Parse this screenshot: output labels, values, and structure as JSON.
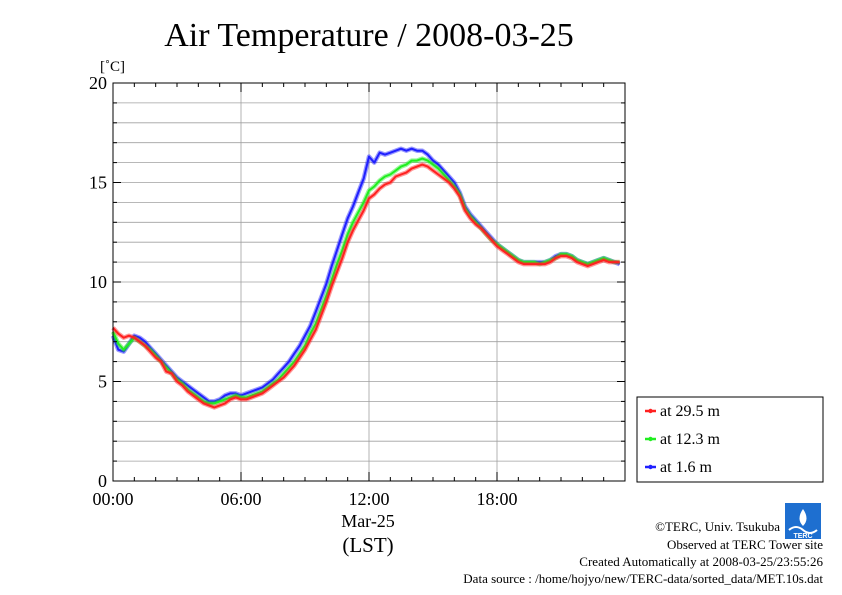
{
  "chart_data": {
    "type": "line",
    "title": "Air Temperature / 2008-03-25",
    "ylabel": "[˚C]",
    "xlabel": "(LST)",
    "date_label": "Mar-25",
    "ylim": [
      0,
      20
    ],
    "xlim": [
      0,
      24
    ],
    "x_unit": "hour",
    "y_ticks": [
      0,
      5,
      10,
      15,
      20
    ],
    "x_ticks": [
      {
        "value": 0,
        "label": "00:00"
      },
      {
        "value": 6,
        "label": "06:00"
      },
      {
        "value": 12,
        "label": "12:00"
      },
      {
        "value": 18,
        "label": "18:00"
      }
    ],
    "grid": true,
    "legend_position": "right-bottom",
    "series": [
      {
        "name": "at 29.5 m",
        "color": "#ff2020",
        "x": [
          0.0,
          0.25,
          0.5,
          0.75,
          1.0,
          1.25,
          1.5,
          1.75,
          2.0,
          2.25,
          2.5,
          2.75,
          3.0,
          3.25,
          3.5,
          3.75,
          4.0,
          4.25,
          4.5,
          4.75,
          5.0,
          5.25,
          5.5,
          5.75,
          6.0,
          6.25,
          6.5,
          6.75,
          7.0,
          7.25,
          7.5,
          7.75,
          8.0,
          8.25,
          8.5,
          8.75,
          9.0,
          9.25,
          9.5,
          9.75,
          10.0,
          10.25,
          10.5,
          10.75,
          11.0,
          11.25,
          11.5,
          11.75,
          12.0,
          12.25,
          12.5,
          12.75,
          13.0,
          13.25,
          13.5,
          13.75,
          14.0,
          14.25,
          14.5,
          14.75,
          15.0,
          15.25,
          15.5,
          15.75,
          16.0,
          16.25,
          16.5,
          16.75,
          17.0,
          17.25,
          17.5,
          17.75,
          18.0,
          18.25,
          18.5,
          18.75,
          19.0,
          19.25,
          19.5,
          19.75,
          20.0,
          20.25,
          20.5,
          20.75,
          21.0,
          21.25,
          21.5,
          21.75,
          22.0,
          22.25,
          22.5,
          22.75,
          23.0,
          23.25,
          23.5,
          23.75
        ],
        "values": [
          7.7,
          7.4,
          7.2,
          7.3,
          7.2,
          7.0,
          6.8,
          6.5,
          6.2,
          6.0,
          5.5,
          5.4,
          5.0,
          4.8,
          4.5,
          4.3,
          4.1,
          3.9,
          3.8,
          3.7,
          3.8,
          3.9,
          4.1,
          4.2,
          4.1,
          4.1,
          4.2,
          4.3,
          4.4,
          4.6,
          4.8,
          5.0,
          5.2,
          5.5,
          5.8,
          6.2,
          6.6,
          7.1,
          7.6,
          8.3,
          9.0,
          9.8,
          10.5,
          11.2,
          12.0,
          12.6,
          13.1,
          13.6,
          14.2,
          14.4,
          14.7,
          14.9,
          15.0,
          15.3,
          15.4,
          15.5,
          15.7,
          15.8,
          15.9,
          15.8,
          15.6,
          15.4,
          15.2,
          15.0,
          14.7,
          14.3,
          13.6,
          13.2,
          12.9,
          12.7,
          12.4,
          12.1,
          11.8,
          11.6,
          11.4,
          11.2,
          11.0,
          10.9,
          10.9,
          10.9,
          10.9,
          10.9,
          11.0,
          11.2,
          11.3,
          11.3,
          11.2,
          11.0,
          10.9,
          10.8,
          10.9,
          11.0,
          11.1,
          11.0,
          11.0,
          11.0
        ]
      },
      {
        "name": "at 12.3 m",
        "color": "#20ee20",
        "x": [
          0.0,
          0.25,
          0.5,
          0.75,
          1.0,
          1.25,
          1.5,
          1.75,
          2.0,
          2.25,
          2.5,
          2.75,
          3.0,
          3.25,
          3.5,
          3.75,
          4.0,
          4.25,
          4.5,
          4.75,
          5.0,
          5.25,
          5.5,
          5.75,
          6.0,
          6.25,
          6.5,
          6.75,
          7.0,
          7.25,
          7.5,
          7.75,
          8.0,
          8.25,
          8.5,
          8.75,
          9.0,
          9.25,
          9.5,
          9.75,
          10.0,
          10.25,
          10.5,
          10.75,
          11.0,
          11.25,
          11.5,
          11.75,
          12.0,
          12.25,
          12.5,
          12.75,
          13.0,
          13.25,
          13.5,
          13.75,
          14.0,
          14.25,
          14.5,
          14.75,
          15.0,
          15.25,
          15.5,
          15.75,
          16.0,
          16.25,
          16.5,
          16.75,
          17.0,
          17.25,
          17.5,
          17.75,
          18.0,
          18.25,
          18.5,
          18.75,
          19.0,
          19.25,
          19.5,
          19.75,
          20.0,
          20.25,
          20.5,
          20.75,
          21.0,
          21.25,
          21.5,
          21.75,
          22.0,
          22.25,
          22.5,
          22.75,
          23.0,
          23.25,
          23.5,
          23.75
        ],
        "values": [
          7.5,
          6.9,
          6.6,
          6.9,
          7.2,
          7.0,
          6.8,
          6.6,
          6.3,
          6.0,
          5.7,
          5.4,
          5.1,
          4.9,
          4.6,
          4.4,
          4.2,
          4.0,
          3.9,
          3.9,
          4.0,
          4.1,
          4.2,
          4.3,
          4.2,
          4.2,
          4.3,
          4.4,
          4.5,
          4.7,
          4.9,
          5.1,
          5.4,
          5.7,
          6.0,
          6.4,
          6.8,
          7.4,
          7.9,
          8.6,
          9.3,
          10.1,
          10.9,
          11.6,
          12.4,
          13.0,
          13.5,
          14.0,
          14.6,
          14.8,
          15.1,
          15.3,
          15.4,
          15.6,
          15.8,
          15.9,
          16.1,
          16.1,
          16.2,
          16.1,
          15.9,
          15.7,
          15.4,
          15.1,
          14.8,
          14.4,
          13.7,
          13.3,
          13.0,
          12.7,
          12.4,
          12.1,
          11.9,
          11.7,
          11.5,
          11.3,
          11.1,
          11.0,
          11.0,
          11.0,
          10.9,
          11.0,
          11.1,
          11.2,
          11.4,
          11.4,
          11.3,
          11.1,
          11.0,
          10.9,
          11.0,
          11.1,
          11.2,
          11.1,
          11.0,
          11.0
        ]
      },
      {
        "name": "at 1.6 m",
        "color": "#2020ff",
        "x": [
          0.0,
          0.25,
          0.5,
          0.75,
          1.0,
          1.25,
          1.5,
          1.75,
          2.0,
          2.25,
          2.5,
          2.75,
          3.0,
          3.25,
          3.5,
          3.75,
          4.0,
          4.25,
          4.5,
          4.75,
          5.0,
          5.25,
          5.5,
          5.75,
          6.0,
          6.25,
          6.5,
          6.75,
          7.0,
          7.25,
          7.5,
          7.75,
          8.0,
          8.25,
          8.5,
          8.75,
          9.0,
          9.25,
          9.5,
          9.75,
          10.0,
          10.25,
          10.5,
          10.75,
          11.0,
          11.25,
          11.5,
          11.75,
          12.0,
          12.25,
          12.5,
          12.75,
          13.0,
          13.25,
          13.5,
          13.75,
          14.0,
          14.25,
          14.5,
          14.75,
          15.0,
          15.25,
          15.5,
          15.75,
          16.0,
          16.25,
          16.5,
          16.75,
          17.0,
          17.25,
          17.5,
          17.75,
          18.0,
          18.25,
          18.5,
          18.75,
          19.0,
          19.25,
          19.5,
          19.75,
          20.0,
          20.25,
          20.5,
          20.75,
          21.0,
          21.25,
          21.5,
          21.75,
          22.0,
          22.25,
          22.5,
          22.75,
          23.0,
          23.25,
          23.5,
          23.75
        ],
        "values": [
          7.3,
          6.6,
          6.5,
          6.9,
          7.3,
          7.2,
          7.0,
          6.7,
          6.4,
          6.1,
          5.8,
          5.5,
          5.2,
          5.0,
          4.8,
          4.6,
          4.4,
          4.2,
          4.0,
          4.0,
          4.1,
          4.3,
          4.4,
          4.4,
          4.3,
          4.4,
          4.5,
          4.6,
          4.7,
          4.9,
          5.1,
          5.4,
          5.7,
          6.0,
          6.4,
          6.8,
          7.3,
          7.8,
          8.5,
          9.2,
          9.9,
          10.8,
          11.6,
          12.4,
          13.2,
          13.8,
          14.5,
          15.2,
          16.3,
          16.0,
          16.5,
          16.4,
          16.5,
          16.6,
          16.7,
          16.6,
          16.7,
          16.6,
          16.6,
          16.4,
          16.1,
          15.9,
          15.6,
          15.3,
          15.0,
          14.5,
          13.8,
          13.4,
          13.1,
          12.8,
          12.5,
          12.2,
          11.9,
          11.7,
          11.5,
          11.3,
          11.1,
          11.0,
          11.0,
          11.0,
          11.0,
          11.0,
          11.1,
          11.3,
          11.4,
          11.4,
          11.3,
          11.1,
          11.0,
          10.9,
          11.0,
          11.1,
          11.2,
          11.1,
          11.0,
          10.9
        ]
      }
    ]
  },
  "footer": {
    "copyright": "©TERC, Univ. Tsukuba",
    "observed": "Observed at TERC Tower site",
    "created": "Created Automatically at 2008-03-25/23:55:26",
    "source": "Data source : /home/hojyo/new/TERC-data/sorted_data/MET.10s.dat"
  },
  "logo": {
    "text": "TERC",
    "color": "#1e6fd0"
  }
}
